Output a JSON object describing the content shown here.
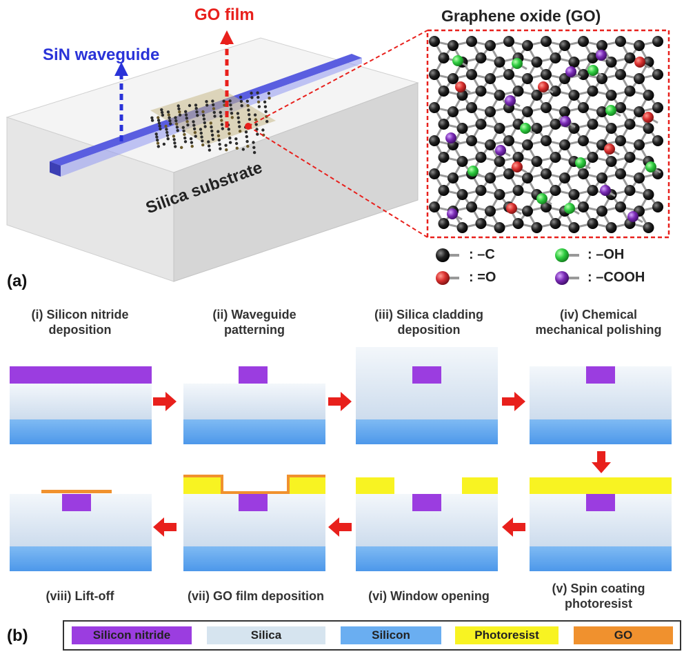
{
  "panel_a": {
    "label": "(a)",
    "sin_waveguide_label": "SiN waveguide",
    "go_film_label": "GO film",
    "substrate_label": "Silica substrate",
    "inset_title": "Graphene oxide (GO)",
    "atom_legend": [
      {
        "text": ": –C",
        "color": "#1a1a1a"
      },
      {
        "text": ": –OH",
        "color": "#2ecc40"
      },
      {
        "text": ": =O",
        "color": "#d9302f"
      },
      {
        "text": ": –COOH",
        "color": "#7a2bb5"
      }
    ]
  },
  "panel_b": {
    "label": "(b)",
    "steps": [
      {
        "label": "(i)  Silicon nitride\ndeposition"
      },
      {
        "label": "(ii) Waveguide\npatterning"
      },
      {
        "label": "(iii) Silica cladding\ndeposition"
      },
      {
        "label": "(iv) Chemical\nmechanical polishing"
      },
      {
        "label": "(v) Spin coating\nphotoresist"
      },
      {
        "label": "(vi) Window opening"
      },
      {
        "label": "(vii) GO film deposition"
      },
      {
        "label": "(viii) Lift-off"
      }
    ],
    "legend": [
      {
        "text": "Silicon nitride",
        "color": "#9b3de0"
      },
      {
        "text": "Silica",
        "color": "#d6e4ef"
      },
      {
        "text": "Silicon",
        "color": "#5fa8f0"
      },
      {
        "text": "Photoresist",
        "color": "#f8f322"
      },
      {
        "text": "GO",
        "color": "#f0912e"
      }
    ]
  },
  "colors": {
    "silicon_nitride": "#9b3de0",
    "silica_top": "#eef3f8",
    "silica_bottom": "#c9d9e8",
    "silicon": "#5fa8f0",
    "photoresist": "#f8f322",
    "go": "#f0912e",
    "arrow": "#e8201c",
    "waveguide_blue": "#5255d8",
    "go_film_red": "#e8201c"
  }
}
